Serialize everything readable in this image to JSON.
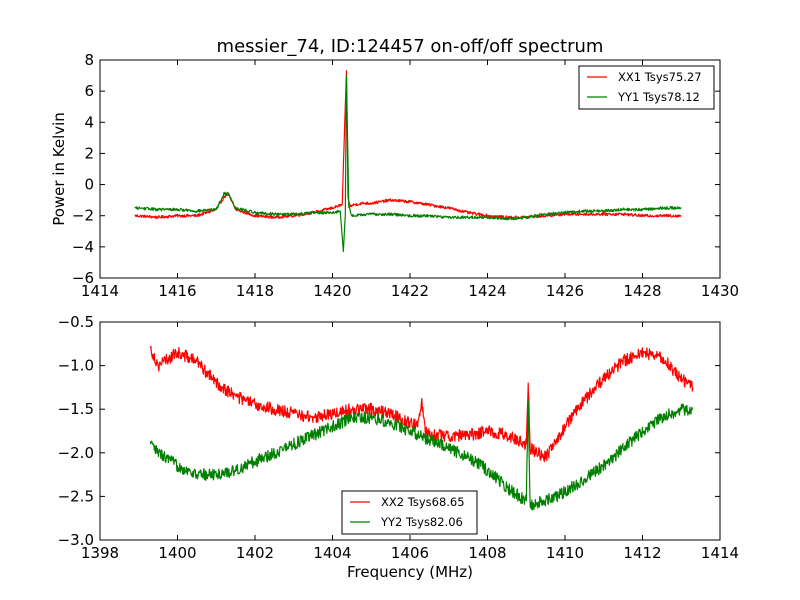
{
  "chart_data": [
    {
      "type": "line",
      "title": "messier_74, ID:124457 on-off/off spectrum",
      "xlabel": "",
      "ylabel": "Power in Kelvin",
      "xlim": [
        1414,
        1430
      ],
      "ylim": [
        -6,
        8
      ],
      "xticks": [
        "1414",
        "1416",
        "1418",
        "1420",
        "1422",
        "1424",
        "1426",
        "1428",
        "1430"
      ],
      "yticks": [
        "8",
        "6",
        "4",
        "2",
        "0",
        "−2",
        "−4",
        "−6"
      ],
      "grid": false,
      "legend_position": "top-right",
      "series": [
        {
          "name": "XX1 Tsys75.27",
          "color": "#ff0000",
          "x": [
            1414.9,
            1415.5,
            1416.0,
            1416.5,
            1417.0,
            1417.2,
            1417.3,
            1417.5,
            1418.0,
            1418.5,
            1419.0,
            1419.5,
            1420.0,
            1420.25,
            1420.36,
            1420.4,
            1420.45,
            1420.55,
            1420.8,
            1421.0,
            1421.5,
            1422.0,
            1422.5,
            1423.0,
            1423.5,
            1424.0,
            1424.5,
            1425.0,
            1425.5,
            1426.0,
            1426.5,
            1427.0,
            1427.5,
            1428.0,
            1428.5,
            1429.0
          ],
          "y": [
            -2.0,
            -2.1,
            -2.0,
            -2.0,
            -1.6,
            -0.8,
            -0.6,
            -1.6,
            -2.0,
            -2.1,
            -2.0,
            -1.8,
            -1.5,
            -1.3,
            7.3,
            -0.8,
            -1.4,
            -1.3,
            -1.2,
            -1.2,
            -1.0,
            -1.1,
            -1.3,
            -1.5,
            -1.8,
            -2.0,
            -2.1,
            -2.1,
            -2.0,
            -1.9,
            -1.9,
            -1.9,
            -1.9,
            -2.0,
            -2.0,
            -2.0
          ]
        },
        {
          "name": "YY1 Tsys78.12",
          "color": "#008000",
          "x": [
            1414.9,
            1415.5,
            1416.0,
            1416.5,
            1417.0,
            1417.2,
            1417.3,
            1417.5,
            1418.0,
            1418.5,
            1419.0,
            1419.5,
            1420.0,
            1420.2,
            1420.28,
            1420.33,
            1420.36,
            1420.42,
            1420.5,
            1421.0,
            1421.5,
            1422.0,
            1422.5,
            1423.0,
            1423.5,
            1424.0,
            1424.5,
            1425.0,
            1425.5,
            1426.0,
            1426.5,
            1427.0,
            1427.5,
            1428.0,
            1428.5,
            1429.0
          ],
          "y": [
            -1.5,
            -1.6,
            -1.6,
            -1.7,
            -1.6,
            -0.6,
            -0.5,
            -1.5,
            -1.8,
            -1.9,
            -1.9,
            -1.8,
            -1.8,
            -1.7,
            -4.3,
            -2.0,
            7.0,
            -1.4,
            -2.0,
            -1.9,
            -1.9,
            -2.0,
            -2.0,
            -2.1,
            -2.1,
            -2.1,
            -2.2,
            -2.1,
            -1.9,
            -1.8,
            -1.7,
            -1.7,
            -1.6,
            -1.6,
            -1.5,
            -1.5
          ]
        }
      ]
    },
    {
      "type": "line",
      "title": "",
      "xlabel": "Frequency (MHz)",
      "ylabel": "",
      "xlim": [
        1398,
        1414
      ],
      "ylim": [
        -3.0,
        -0.5
      ],
      "xticks": [
        "1398",
        "1400",
        "1402",
        "1404",
        "1406",
        "1408",
        "1410",
        "1412",
        "1414"
      ],
      "yticks": [
        "−0.5",
        "−1.0",
        "−1.5",
        "−2.0",
        "−2.5",
        "−3.0"
      ],
      "grid": false,
      "legend_position": "bottom-center",
      "series": [
        {
          "name": "XX2 Tsys68.65",
          "color": "#ff0000",
          "x": [
            1399.3,
            1399.5,
            1400.0,
            1400.5,
            1401.0,
            1401.5,
            1402.0,
            1402.5,
            1403.0,
            1403.5,
            1404.0,
            1404.5,
            1405.0,
            1405.5,
            1406.0,
            1406.2,
            1406.3,
            1406.4,
            1406.6,
            1407.0,
            1407.5,
            1408.0,
            1408.5,
            1409.0,
            1409.05,
            1409.1,
            1409.5,
            1410.0,
            1410.5,
            1411.0,
            1411.5,
            1412.0,
            1412.5,
            1413.0,
            1413.3
          ],
          "y": [
            -0.8,
            -1.0,
            -0.85,
            -0.95,
            -1.2,
            -1.35,
            -1.45,
            -1.5,
            -1.55,
            -1.6,
            -1.55,
            -1.5,
            -1.5,
            -1.55,
            -1.65,
            -1.7,
            -1.4,
            -1.75,
            -1.8,
            -1.8,
            -1.8,
            -1.75,
            -1.8,
            -1.9,
            -1.2,
            -1.95,
            -2.05,
            -1.7,
            -1.4,
            -1.15,
            -0.95,
            -0.85,
            -0.9,
            -1.15,
            -1.25
          ]
        },
        {
          "name": "YY2 Tsys82.06",
          "color": "#008000",
          "x": [
            1399.3,
            1399.5,
            1400.0,
            1400.5,
            1401.0,
            1401.5,
            1402.0,
            1402.5,
            1403.0,
            1403.5,
            1404.0,
            1404.5,
            1405.0,
            1405.5,
            1406.0,
            1406.5,
            1407.0,
            1407.5,
            1408.0,
            1408.5,
            1409.0,
            1409.05,
            1409.1,
            1409.5,
            1410.0,
            1410.5,
            1411.0,
            1411.5,
            1412.0,
            1412.5,
            1413.0,
            1413.3
          ],
          "y": [
            -1.9,
            -2.0,
            -2.15,
            -2.25,
            -2.25,
            -2.2,
            -2.1,
            -2.0,
            -1.9,
            -1.8,
            -1.7,
            -1.6,
            -1.6,
            -1.65,
            -1.75,
            -1.85,
            -1.95,
            -2.05,
            -2.2,
            -2.4,
            -2.55,
            -1.4,
            -2.6,
            -2.55,
            -2.45,
            -2.3,
            -2.15,
            -1.95,
            -1.75,
            -1.6,
            -1.5,
            -1.5
          ]
        }
      ]
    }
  ]
}
